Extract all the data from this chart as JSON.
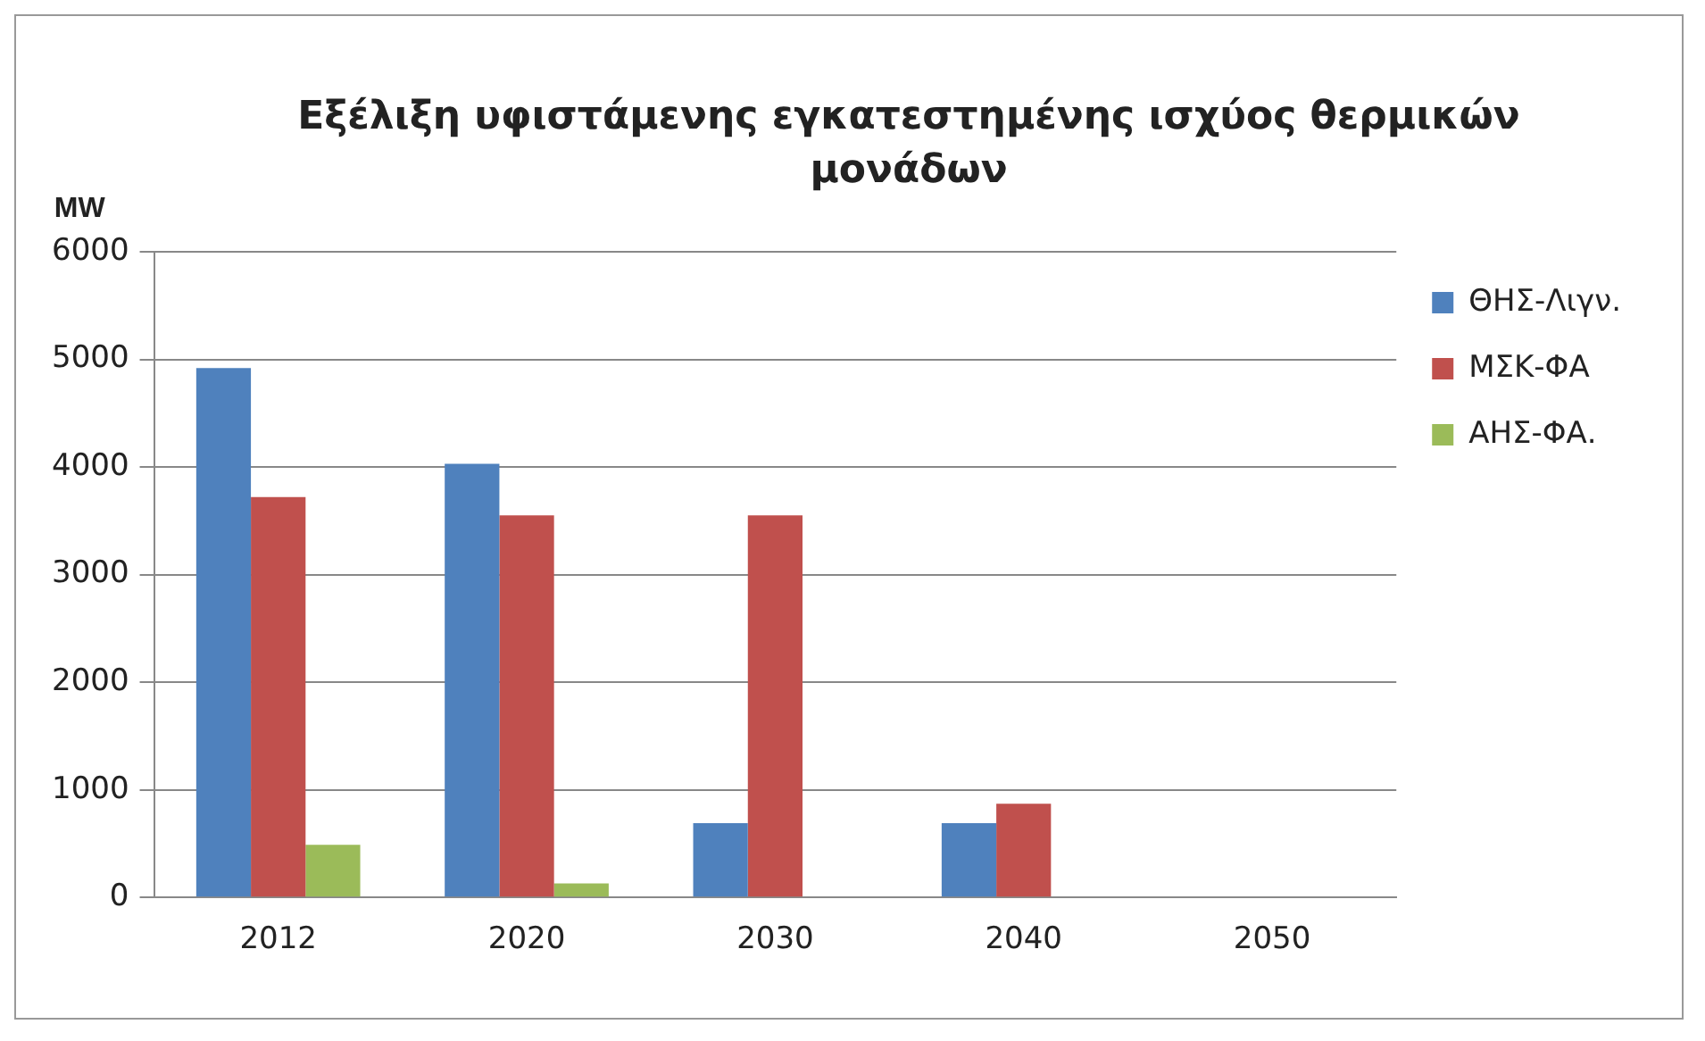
{
  "chart_data": {
    "type": "bar",
    "title": "Εξέλιξη υφιστάμενης εγκατεστημένης ισχύος θερμικών μονάδων",
    "ylabel": "MW",
    "categories": [
      "2012",
      "2020",
      "2030",
      "2040",
      "2050"
    ],
    "series": [
      {
        "name": "ΘΗΣ-Λιγν.",
        "color": "#4f81bd",
        "values": [
          4920,
          4030,
          690,
          690,
          0
        ]
      },
      {
        "name": "ΜΣΚ-ΦΑ",
        "color": "#c0504d",
        "values": [
          3720,
          3550,
          3550,
          870,
          0
        ]
      },
      {
        "name": "ΑΗΣ-ΦΑ.",
        "color": "#9bbb59",
        "values": [
          490,
          130,
          0,
          0,
          0
        ]
      }
    ],
    "ylim": [
      0,
      6000
    ],
    "yticks": [
      0,
      1000,
      2000,
      3000,
      4000,
      5000,
      6000
    ],
    "grid": "y",
    "legend": "top right"
  }
}
